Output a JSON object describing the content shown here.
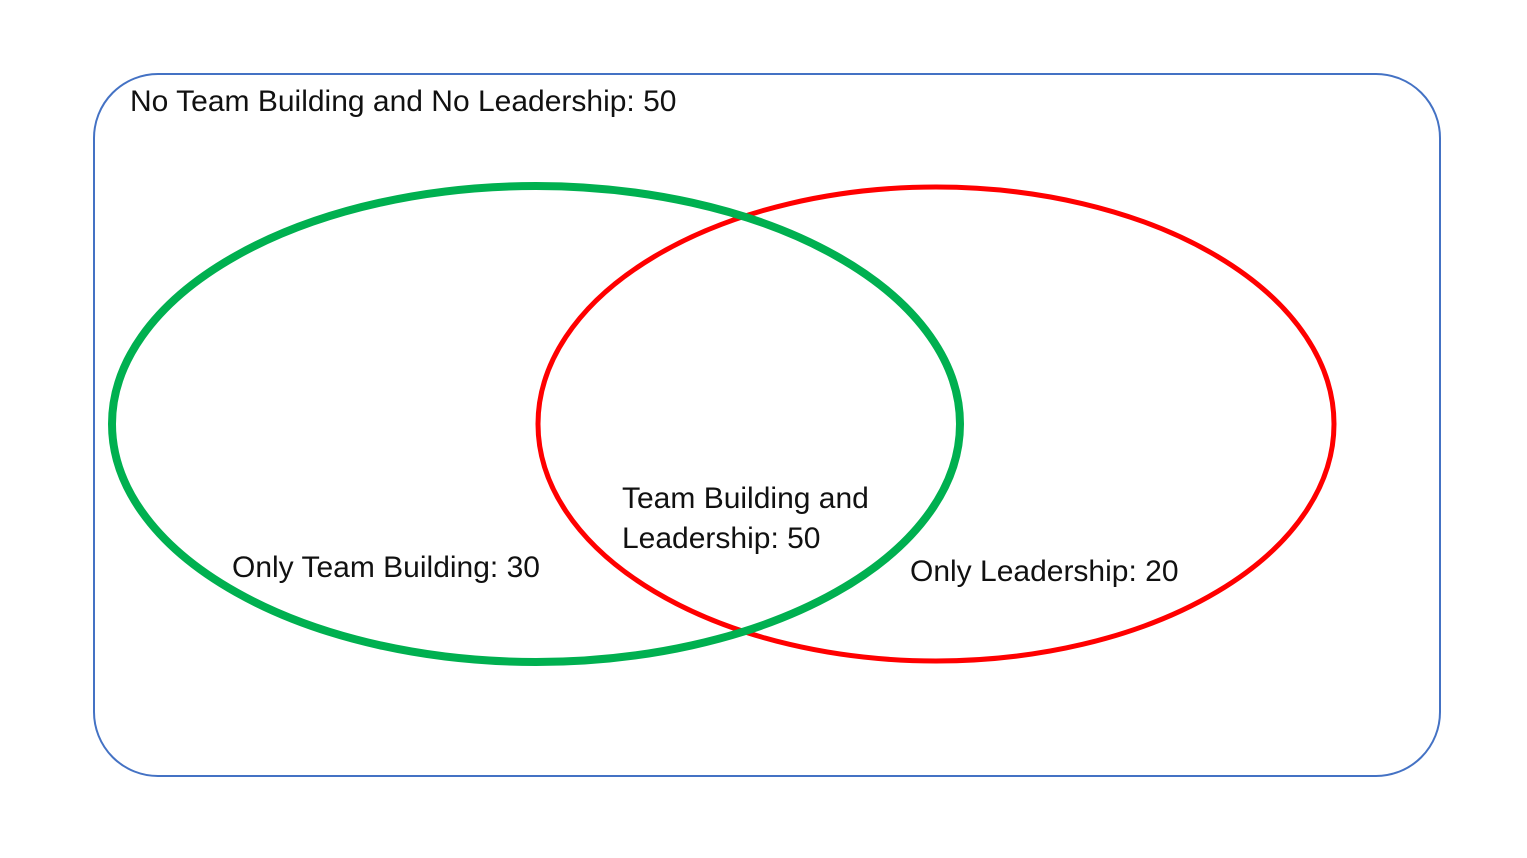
{
  "diagram": {
    "type": "venn",
    "colors": {
      "universe_border": "#4472C4",
      "team_building_circle": "#00B050",
      "leadership_circle": "#FF0000",
      "text": "#111111"
    },
    "regions": {
      "outside": {
        "label": "No Team Building and No Leadership: 50",
        "value": 50
      },
      "only_team_building": {
        "label": "Only Team Building: 30",
        "value": 30
      },
      "both": {
        "label_line1": "Team Building and",
        "label_line2": "Leadership: 50",
        "value": 50
      },
      "only_leadership": {
        "label": "Only Leadership: 20",
        "value": 20
      }
    }
  }
}
